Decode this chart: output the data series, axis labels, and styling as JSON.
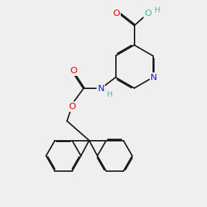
{
  "bg_color": "#efefef",
  "bond_color": "#1a1a1a",
  "bond_width": 1.4,
  "dbo": 0.055,
  "atom_colors": {
    "O": "#e80000",
    "N": "#1414e0",
    "H_teal": "#50b0a0",
    "C": "#1a1a1a"
  },
  "font_size_atom": 9.5,
  "font_size_h": 8.0
}
